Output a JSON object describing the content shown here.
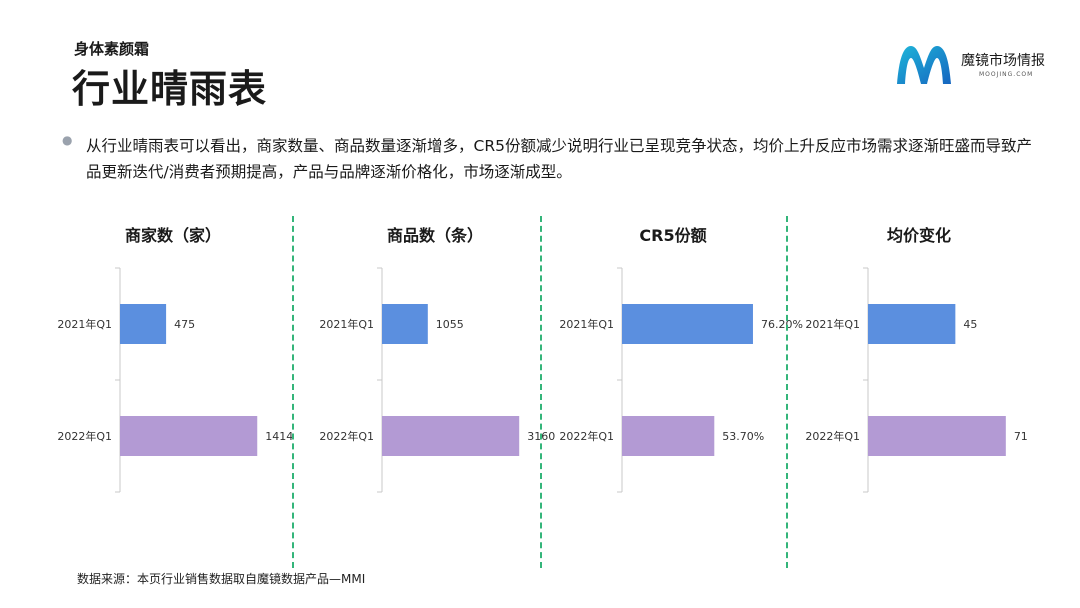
{
  "header": {
    "subtitle": "身体素颜霜",
    "title": "行业晴雨表"
  },
  "logo": {
    "name": "魔镜市场情报",
    "sub": "MOOJING.COM",
    "colors": [
      "#1fb6d9",
      "#1565c0"
    ]
  },
  "bullet": {
    "icon": "bullet-dot",
    "text": "从行业晴雨表可以看出，商家数量、商品数量逐渐增多，CR5份额减少说明行业已呈现竞争状态，均价上升反应市场需求逐渐旺盛而导致产品更新迭代/消费者预期提高，产品与品牌逐渐价格化，市场逐渐成型。"
  },
  "source": "数据来源：本页行业销售数据取自魔镜数据产品—MMI",
  "colors": {
    "bar_2021": "#5b8fdf",
    "bar_2022": "#b39ad4",
    "divider": "#34b57a"
  },
  "chart_data": [
    {
      "type": "bar",
      "orientation": "horizontal",
      "title": "商家数（家）",
      "categories": [
        "2021年Q1",
        "2022年Q1"
      ],
      "values": [
        475,
        1414
      ],
      "labels": [
        "475",
        "1414"
      ],
      "xlim": [
        0,
        1700
      ]
    },
    {
      "type": "bar",
      "orientation": "horizontal",
      "title": "商品数（条）",
      "categories": [
        "2021年Q1",
        "2022年Q1"
      ],
      "values": [
        1055,
        3160
      ],
      "labels": [
        "1055",
        "3160"
      ],
      "xlim": [
        0,
        3800
      ]
    },
    {
      "type": "bar",
      "orientation": "horizontal",
      "title": "CR5份额",
      "categories": [
        "2021年Q1",
        "2022年Q1"
      ],
      "values": [
        76.2,
        53.7
      ],
      "labels": [
        "76.20%",
        "53.70%"
      ],
      "xlim": [
        0,
        96
      ]
    },
    {
      "type": "bar",
      "orientation": "horizontal",
      "title": "均价变化",
      "categories": [
        "2021年Q1",
        "2022年Q1"
      ],
      "values": [
        45,
        71
      ],
      "labels": [
        "45",
        "71"
      ],
      "xlim": [
        0,
        85
      ]
    }
  ]
}
